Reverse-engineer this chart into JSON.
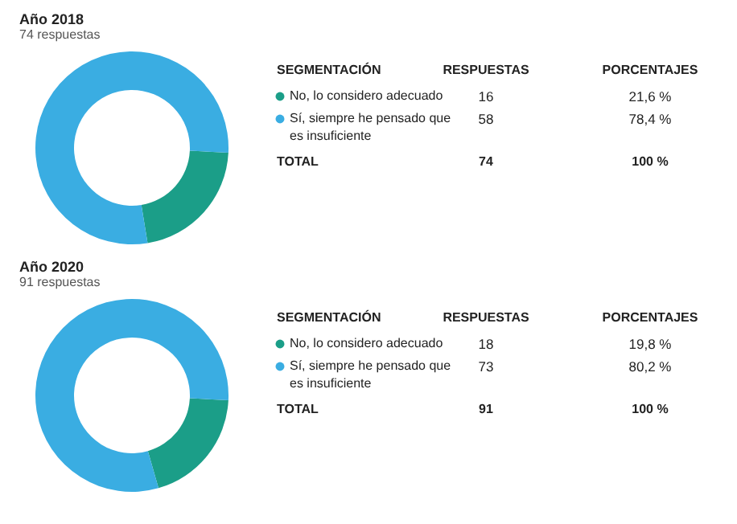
{
  "chart_data": [
    {
      "type": "donut",
      "title": "Año 2018",
      "subtitle": "74 respuestas",
      "categories": [
        "No, lo considero adecuado",
        "Sí, siempre he pensado que es insuficiente"
      ],
      "values": [
        16,
        58
      ],
      "colors": [
        "#1b9e88",
        "#3aade2"
      ],
      "data_labels": true,
      "legend": "right",
      "annotations": [
        "SEGMENTACIÓN",
        "RESPUESTAS",
        "PORCENTAJES",
        "21,6 %",
        "78,4 %",
        "TOTAL",
        "74",
        "100 %"
      ]
    },
    {
      "type": "donut",
      "title": "Año 2020",
      "subtitle": "91 respuestas",
      "categories": [
        "No, lo considero adecuado",
        "Sí, siempre he pensado que es insuficiente"
      ],
      "values": [
        18,
        73
      ],
      "colors": [
        "#1b9e88",
        "#3aade2"
      ],
      "data_labels": true,
      "legend": "right",
      "annotations": [
        "SEGMENTACIÓN",
        "RESPUESTAS",
        "PORCENTAJES",
        "19,8 %",
        "80,2 %",
        "TOTAL",
        "91",
        "100 %"
      ]
    }
  ]
}
